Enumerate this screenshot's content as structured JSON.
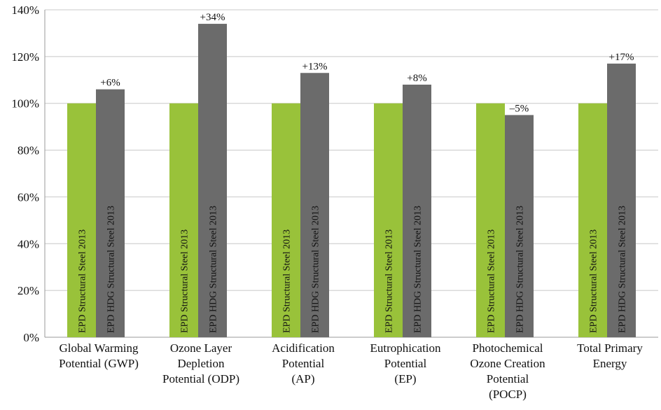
{
  "chart_data": {
    "type": "bar",
    "title": "",
    "xlabel": "",
    "ylabel": "",
    "ylim": [
      0,
      140
    ],
    "yticks": [
      0,
      20,
      40,
      60,
      80,
      100,
      120,
      140
    ],
    "ytick_suffix": "%",
    "grid": "horizontal",
    "legend": "none",
    "categories": [
      [
        "Global Warming",
        "Potential (GWP)"
      ],
      [
        "Ozone Layer",
        "Depletion",
        "Potential (ODP)"
      ],
      [
        "Acidification",
        "Potential",
        "(AP)"
      ],
      [
        "Eutrophication",
        "Potential",
        "(EP)"
      ],
      [
        "Photochemical",
        "Ozone Creation",
        "Potential",
        "(POCP)"
      ],
      [
        "Total Primary",
        "Energy"
      ]
    ],
    "series": [
      {
        "name": "EPD Structural Steel 2013",
        "color": "#99c23a",
        "values": [
          100,
          100,
          100,
          100,
          100,
          100
        ],
        "data_labels": [
          "",
          "",
          "",
          "",
          "",
          ""
        ]
      },
      {
        "name": "EPD HDG Structural Steel 2013",
        "color": "#6b6b6b",
        "values": [
          106,
          134,
          113,
          108,
          95,
          117
        ],
        "data_labels": [
          "+6%",
          "+34%",
          "+13%",
          "+8%",
          "–5%",
          "+17%"
        ]
      }
    ]
  }
}
